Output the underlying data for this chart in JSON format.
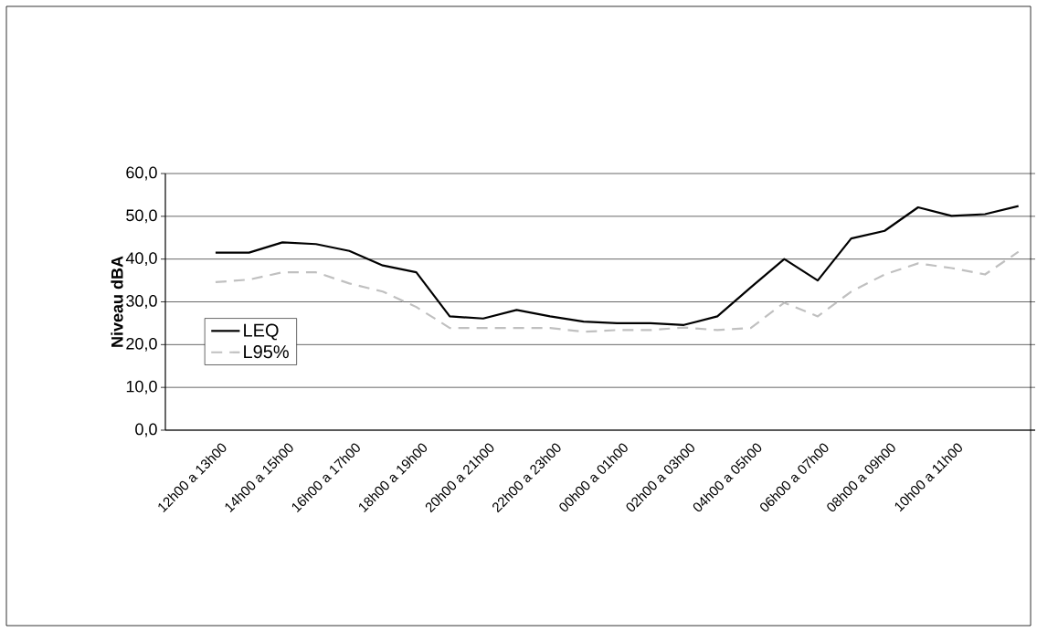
{
  "chart_data": {
    "type": "line",
    "ylabel": "Niveau dBA",
    "categories": [
      null,
      "12h00 a 13h00",
      null,
      "14h00 a 15h00",
      null,
      "16h00 a 17h00",
      null,
      "18h00 a 19h00",
      null,
      "20h00 a 21h00",
      null,
      "22h00 a 23h00",
      null,
      "00h00 a 01h00",
      null,
      "02h00 a 03h00",
      null,
      "04h00 a 05h00",
      null,
      "06h00 a 07h00",
      null,
      "08h00 a 09h00",
      null,
      "10h00 a 11h00",
      null,
      null
    ],
    "series": [
      {
        "name": "LEQ",
        "color": "#000000",
        "line_style": "solid",
        "values": [
          null,
          41.5,
          41.5,
          43.9,
          43.5,
          41.9,
          38.5,
          36.9,
          26.6,
          26.1,
          28.1,
          26.6,
          25.4,
          25.0,
          25.0,
          24.6,
          26.6,
          33.4,
          40.0,
          35.0,
          44.8,
          46.6,
          52.1,
          50.1,
          50.5,
          52.4
        ]
      },
      {
        "name": "L95%",
        "color": "#c0c0c0",
        "line_style": "dashed",
        "values": [
          null,
          34.6,
          35.2,
          36.9,
          36.9,
          34.3,
          32.4,
          28.8,
          23.9,
          23.9,
          23.9,
          23.9,
          23.0,
          23.4,
          23.4,
          24.0,
          23.4,
          23.9,
          29.8,
          26.6,
          32.4,
          36.4,
          39.0,
          37.9,
          36.4,
          41.7
        ]
      }
    ],
    "ylim": [
      0,
      60
    ],
    "yticks": [
      {
        "value": 0,
        "label": "0,0"
      },
      {
        "value": 10,
        "label": "10,0"
      },
      {
        "value": 20,
        "label": "20,0"
      },
      {
        "value": 30,
        "label": "30,0"
      },
      {
        "value": 40,
        "label": "40,0"
      },
      {
        "value": 50,
        "label": "50,0"
      },
      {
        "value": 60,
        "label": "60,0"
      }
    ],
    "grid": "y",
    "legend": "left",
    "marker": "none"
  }
}
